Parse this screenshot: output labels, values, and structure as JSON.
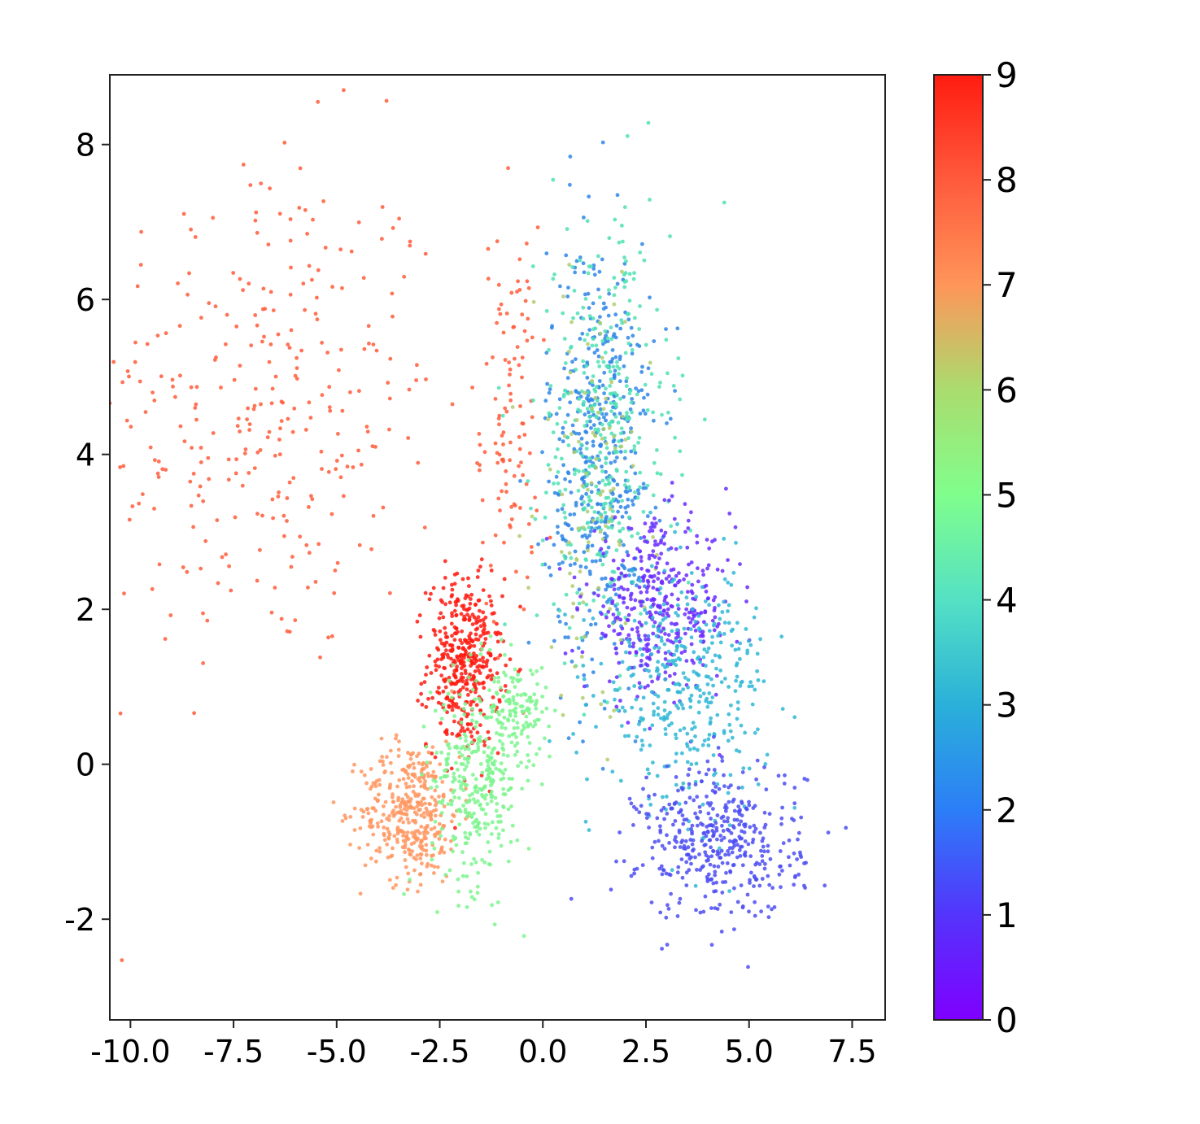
{
  "chart_data": {
    "type": "scatter",
    "title": "",
    "xlabel": "",
    "ylabel": "",
    "xlim": [
      -10.5,
      8.3
    ],
    "ylim": [
      -3.3,
      8.9
    ],
    "x_ticks": [
      -10.0,
      -7.5,
      -5.0,
      -2.5,
      0.0,
      2.5,
      5.0,
      7.5
    ],
    "x_tick_labels": [
      "-10.0",
      "-7.5",
      "-5.0",
      "-2.5",
      "0.0",
      "2.5",
      "5.0",
      "7.5"
    ],
    "y_ticks": [
      -2,
      0,
      2,
      4,
      6,
      8
    ],
    "y_tick_labels": [
      "-2",
      "0",
      "2",
      "4",
      "6",
      "8"
    ],
    "grid": false,
    "colormap": "rainbow",
    "colorbar": {
      "range": [
        0,
        9
      ],
      "ticks": [
        0,
        1,
        2,
        3,
        4,
        5,
        6,
        7,
        8,
        9
      ],
      "tick_labels": [
        "0",
        "1",
        "2",
        "3",
        "4",
        "5",
        "6",
        "7",
        "8",
        "9"
      ]
    },
    "clusters": [
      {
        "label": 8,
        "x_center": -6.8,
        "y_center": 4.6,
        "x_spread": 2.2,
        "y_spread": 1.7,
        "count": 320
      },
      {
        "label": 8,
        "x_center": -0.8,
        "y_center": 4.4,
        "x_spread": 0.35,
        "y_spread": 1.3,
        "count": 110
      },
      {
        "label": 9,
        "x_center": -1.9,
        "y_center": 1.3,
        "x_spread": 0.45,
        "y_spread": 0.55,
        "count": 420
      },
      {
        "label": 7,
        "x_center": -3.2,
        "y_center": -0.6,
        "x_spread": 0.6,
        "y_spread": 0.45,
        "count": 380
      },
      {
        "label": 5,
        "x_center": -1.6,
        "y_center": -0.2,
        "x_spread": 0.55,
        "y_spread": 0.7,
        "count": 340
      },
      {
        "label": 5,
        "x_center": -0.6,
        "y_center": 0.7,
        "x_spread": 0.35,
        "y_spread": 0.3,
        "count": 120
      },
      {
        "label": 2,
        "x_center": 1.4,
        "y_center": 4.0,
        "x_spread": 0.65,
        "y_spread": 1.4,
        "count": 480
      },
      {
        "label": 4,
        "x_center": 1.5,
        "y_center": 4.2,
        "x_spread": 0.8,
        "y_spread": 1.4,
        "count": 380
      },
      {
        "label": 6,
        "x_center": 1.2,
        "y_center": 3.5,
        "x_spread": 0.7,
        "y_spread": 1.4,
        "count": 110
      },
      {
        "label": 0,
        "x_center": 2.8,
        "y_center": 2.0,
        "x_spread": 0.9,
        "y_spread": 0.55,
        "count": 380
      },
      {
        "label": 3,
        "x_center": 3.5,
        "y_center": 1.0,
        "x_spread": 1.0,
        "y_spread": 0.75,
        "count": 380
      },
      {
        "label": 1,
        "x_center": 4.3,
        "y_center": -1.0,
        "x_spread": 1.0,
        "y_spread": 0.5,
        "count": 420
      }
    ]
  }
}
